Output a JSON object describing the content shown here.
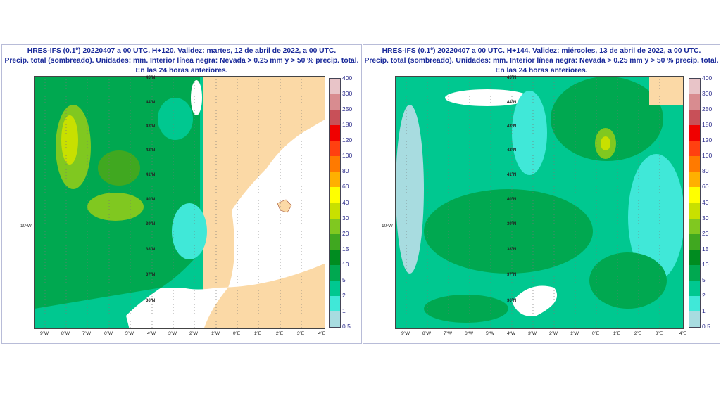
{
  "panels": [
    {
      "title_line1": "HRES-IFS (0.1º) 20220407 a 00 UTC. H+120. Validez: martes, 12 de abril de 2022, a 00 UTC.",
      "title_line2": "Precip. total (sombreado). Unidades: mm. Interior línea negra: Nevada > 0.25 mm y > 50 % precip. total.",
      "title_line3": "En las 24 horas anteriores."
    },
    {
      "title_line1": "HRES-IFS (0.1º) 20220407 a 00 UTC. H+144. Validez: miércoles, 13 de abril de 2022, a 00 UTC.",
      "title_line2": "Precip. total (sombreado). Unidades: mm. Interior línea negra: Nevada > 0.25 mm y > 50 % precip. total.",
      "title_line3": "En las 24 horas anteriores."
    }
  ],
  "lat_labels": [
    "45ºN",
    "44ºN",
    "43ºN",
    "42ºN",
    "41ºN",
    "40ºN",
    "39ºN",
    "38ºN",
    "37ºN",
    "36ºN"
  ],
  "lon_labels": [
    "9ºW",
    "8ºW",
    "7ºW",
    "6ºW",
    "5ºW",
    "4ºW",
    "3ºW",
    "2ºW",
    "1ºW",
    "0ºE",
    "1ºE",
    "2ºE",
    "3ºE",
    "4ºE"
  ],
  "west_label": "10ºW",
  "colorbar": {
    "labels": [
      "400",
      "300",
      "250",
      "180",
      "120",
      "100",
      "80",
      "60",
      "40",
      "30",
      "20",
      "15",
      "10",
      "5",
      "2",
      "1",
      "0.5"
    ],
    "colors": [
      "#e8c4c8",
      "#d88c90",
      "#c85058",
      "#f00000",
      "#ff4010",
      "#ff7a00",
      "#ffb000",
      "#ffff00",
      "#c8e000",
      "#80c820",
      "#40a820",
      "#008c20",
      "#00a850",
      "#00c890",
      "#40e8d8",
      "#a8dce0"
    ]
  },
  "colors": {
    "land_no_precip": "#fbd9a6",
    "sea_no_precip": "#ffffff",
    "title": "#1a2a9a"
  }
}
